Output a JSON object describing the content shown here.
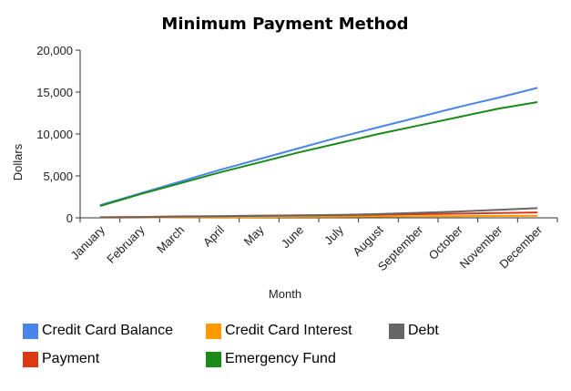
{
  "chart_data": {
    "type": "line",
    "title": "Minimum Payment Method",
    "xlabel": "Month",
    "ylabel": "Dollars",
    "ylim": [
      0,
      20000
    ],
    "yticks": [
      "0",
      "5,000",
      "10,000",
      "15,000",
      "20,000"
    ],
    "ytick_values": [
      0,
      5000,
      10000,
      15000,
      20000
    ],
    "categories": [
      "January",
      "February",
      "March",
      "April",
      "May",
      "June",
      "July",
      "August",
      "September",
      "October",
      "November",
      "December"
    ],
    "grid": false,
    "legend_position": "bottom",
    "series": [
      {
        "name": "Credit Card Balance",
        "color": "#4a86e8",
        "values": [
          1500,
          2900,
          4300,
          5700,
          7000,
          8300,
          9600,
          10800,
          12000,
          13200,
          14300,
          15500
        ]
      },
      {
        "name": "Credit Card Interest",
        "color": "#ff9900",
        "values": [
          20,
          40,
          60,
          80,
          100,
          120,
          140,
          160,
          180,
          200,
          220,
          250
        ]
      },
      {
        "name": "Debt",
        "color": "#666666",
        "values": [
          50,
          80,
          130,
          180,
          230,
          280,
          350,
          450,
          600,
          750,
          950,
          1150
        ]
      },
      {
        "name": "Payment",
        "color": "#dc3912",
        "values": [
          60,
          100,
          170,
          200,
          260,
          290,
          320,
          380,
          440,
          490,
          560,
          640
        ]
      },
      {
        "name": "Emergency Fund",
        "color": "#1a8a1a",
        "values": [
          1400,
          2800,
          4100,
          5400,
          6600,
          7800,
          8900,
          10000,
          11000,
          12000,
          13000,
          13800
        ]
      }
    ]
  }
}
